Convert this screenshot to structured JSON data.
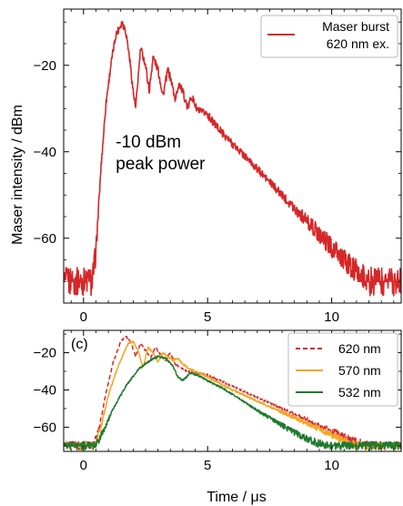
{
  "chart_data": [
    {
      "type": "line",
      "panel": "top",
      "xlabel": "",
      "ylabel": "Maser intensity / dBm",
      "xlim": [
        -0.8,
        12.8
      ],
      "ylim": [
        -75,
        -7
      ],
      "xticks": [
        0,
        5,
        10
      ],
      "yticks": [
        -20,
        -40,
        -60
      ],
      "xtick_labels": [
        "0",
        "5",
        "10"
      ],
      "ytick_labels": [
        "−20",
        "−40",
        "−60"
      ],
      "legend_position": "top-right",
      "annotations": [
        {
          "text": "-10 dBm",
          "x": 1.3,
          "y": -39
        },
        {
          "text": "peak power",
          "x": 1.3,
          "y": -44
        }
      ],
      "series": [
        {
          "name": "Maser burst\n620 nm ex.",
          "legend_lines": [
            "Maser burst",
            "620 nm ex."
          ],
          "color": "#d62728",
          "dash": "solid",
          "x": [
            -0.8,
            0.35,
            0.5,
            0.7,
            0.9,
            1.1,
            1.3,
            1.55,
            1.7,
            1.85,
            2.0,
            2.1,
            2.3,
            2.5,
            2.65,
            2.8,
            3.0,
            3.2,
            3.4,
            3.55,
            3.7,
            3.85,
            4.05,
            4.2,
            4.35,
            4.55,
            4.75,
            4.95,
            5.2,
            5.8,
            6.5,
            7.5,
            8.5,
            9.5,
            10.3,
            11.0,
            11.5,
            12.0,
            12.8
          ],
          "y": [
            -70,
            -70,
            -63,
            -44,
            -29,
            -20,
            -13,
            -10,
            -12,
            -18,
            -26,
            -30,
            -16,
            -20,
            -26,
            -18,
            -21,
            -27,
            -21,
            -24,
            -28,
            -24,
            -27,
            -30,
            -27,
            -30,
            -31,
            -31,
            -33,
            -37,
            -41,
            -47,
            -53,
            -59,
            -64,
            -68,
            -70,
            -70,
            -70
          ]
        }
      ]
    },
    {
      "type": "line",
      "panel": "bottom",
      "panel_label": "(c)",
      "xlabel": "Time / μs",
      "ylabel": "",
      "xlim": [
        -0.8,
        12.8
      ],
      "ylim": [
        -73,
        -8
      ],
      "xticks": [
        0,
        5,
        10
      ],
      "yticks": [
        -20,
        -40,
        -60
      ],
      "xtick_labels": [
        "0",
        "5",
        "10"
      ],
      "ytick_labels": [
        "−20",
        "−40",
        "−60"
      ],
      "legend_position": "right",
      "series": [
        {
          "name": "620 nm",
          "color": "#d62728",
          "dash": "dashed",
          "x": [
            -0.8,
            0.4,
            0.6,
            0.9,
            1.2,
            1.5,
            1.7,
            1.9,
            2.1,
            2.3,
            2.5,
            2.7,
            2.9,
            3.1,
            3.3,
            3.5,
            3.7,
            3.9,
            4.2,
            4.6,
            5.0,
            6.0,
            7.0,
            8.0,
            9.0,
            10.0,
            11.0,
            11.5,
            12.8
          ],
          "y": [
            -70,
            -70,
            -62,
            -42,
            -25,
            -14,
            -11,
            -14,
            -22,
            -15,
            -19,
            -23,
            -17,
            -21,
            -24,
            -20,
            -26,
            -28,
            -30,
            -31,
            -32,
            -38,
            -44,
            -50,
            -56,
            -62,
            -68,
            -70,
            -70
          ]
        },
        {
          "name": "570 nm",
          "color": "#f5a623",
          "dash": "solid",
          "x": [
            -0.8,
            0.45,
            0.7,
            1.0,
            1.4,
            1.8,
            2.0,
            2.2,
            2.4,
            2.6,
            2.8,
            3.0,
            3.2,
            3.4,
            3.6,
            3.8,
            4.0,
            4.3,
            4.7,
            5.0,
            6.0,
            7.0,
            8.0,
            9.0,
            10.0,
            10.6,
            11.0,
            12.8
          ],
          "y": [
            -70,
            -70,
            -60,
            -43,
            -27,
            -15,
            -14,
            -19,
            -28,
            -17,
            -20,
            -25,
            -20,
            -22,
            -24,
            -23,
            -26,
            -29,
            -31,
            -33,
            -40,
            -46,
            -52,
            -58,
            -64,
            -68,
            -70,
            -70
          ]
        },
        {
          "name": "532 nm",
          "color": "#1f7a2e",
          "dash": "solid",
          "x": [
            -0.8,
            0.5,
            0.8,
            1.2,
            1.7,
            2.2,
            2.7,
            3.0,
            3.3,
            3.6,
            3.8,
            4.0,
            4.3,
            4.6,
            5.0,
            5.6,
            6.2,
            7.0,
            8.0,
            8.8,
            9.5,
            10.0,
            10.5,
            12.8
          ],
          "y": [
            -70,
            -70,
            -62,
            -50,
            -38,
            -29,
            -24,
            -22,
            -23,
            -27,
            -33,
            -35,
            -31,
            -32,
            -35,
            -39,
            -44,
            -51,
            -59,
            -65,
            -69,
            -70,
            -70,
            -70
          ]
        }
      ]
    }
  ]
}
